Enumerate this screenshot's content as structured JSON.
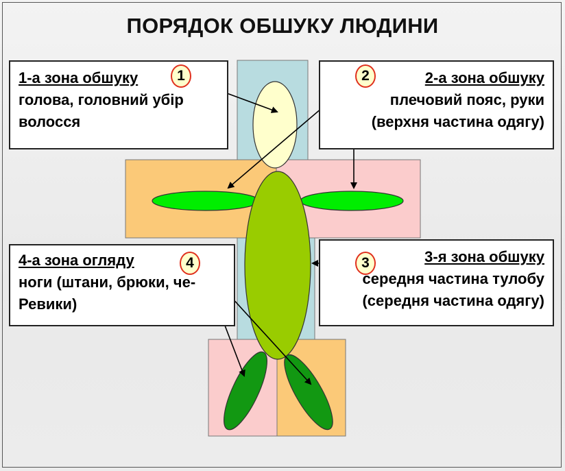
{
  "title": "ПОРЯДОК ОБШУКУ ЛЮДИНИ",
  "colors": {
    "spine": "#b8dce0",
    "arm_left_panel": "#fbc978",
    "arm_right_panel": "#fbcccc",
    "head": "#ffffcc",
    "torso": "#99cc00",
    "arms": "#00ee00",
    "legs": "#129812",
    "badge_border": "#e0301e",
    "badge_fill": "#ffffcc"
  },
  "zones": [
    {
      "number": "1",
      "heading": "1-а зона обшуку",
      "lines": [
        "голова, головний убір",
        "волосся"
      ]
    },
    {
      "number": "2",
      "heading": "2-а зона обшуку",
      "lines": [
        "плечовий пояс, руки",
        "(верхня частина одягу)"
      ]
    },
    {
      "number": "3",
      "heading": "3-я зона обшуку",
      "lines": [
        "середня частина тулобу",
        "(середня частина одягу)"
      ]
    },
    {
      "number": "4",
      "heading": "4-а зона огляду",
      "lines": [
        "ноги (штани, брюки, че-",
        "Ревики)"
      ]
    }
  ]
}
